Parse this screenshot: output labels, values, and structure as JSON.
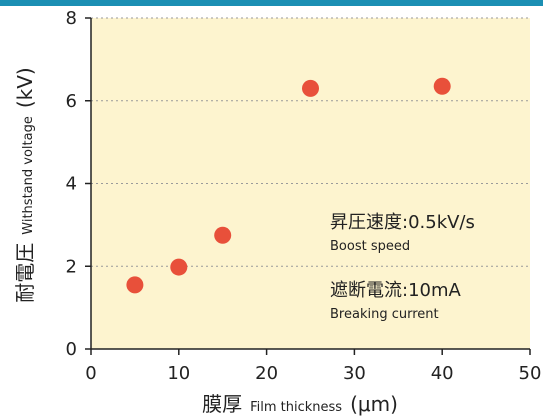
{
  "colors": {
    "plot_background": "#fdf4cf",
    "marker": "#e8503a",
    "grid": "#9a9a9a",
    "axis": "#222222",
    "top_band": "#1b8fb3"
  },
  "chart_data": {
    "type": "scatter",
    "title": "",
    "xlabel": {
      "main": "膜厚",
      "sub": "Film thickness",
      "unit": "(μm)"
    },
    "ylabel": {
      "main": "耐電圧",
      "sub": "Withstand voltage",
      "unit": "(kV)"
    },
    "xlim": [
      0,
      50
    ],
    "ylim": [
      0,
      8
    ],
    "xticks": [
      "0",
      "10",
      "20",
      "30",
      "40",
      "50"
    ],
    "yticks": [
      "0",
      "2",
      "4",
      "6",
      "8"
    ],
    "grid": "horizontal dotted",
    "points": [
      {
        "x": 5,
        "y": 1.55
      },
      {
        "x": 10,
        "y": 1.98
      },
      {
        "x": 15,
        "y": 2.75
      },
      {
        "x": 25,
        "y": 6.3
      },
      {
        "x": 40,
        "y": 6.35
      }
    ],
    "annotations": [
      {
        "main": "昇圧速度:0.5kV/s",
        "sub": "Boost speed"
      },
      {
        "main": "遮断電流:10mA",
        "sub": "Breaking current"
      }
    ]
  }
}
